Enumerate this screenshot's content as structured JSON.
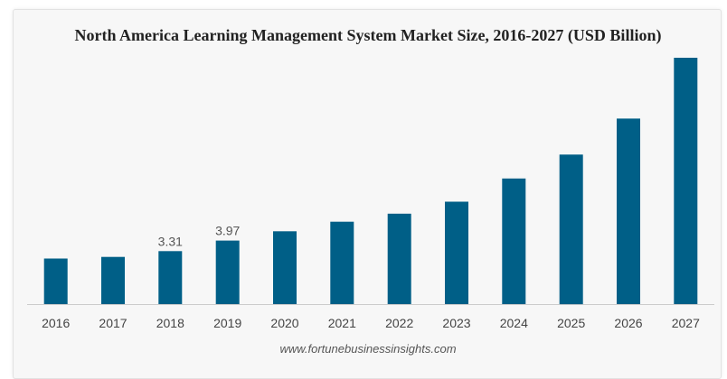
{
  "colors": {
    "bar": "#005f87",
    "background": "#f7f7f7"
  },
  "chart_data": {
    "type": "bar",
    "title": "North America Learning Management System Market Size, 2016-2027 (USD Billion)",
    "categories": [
      "2016",
      "2017",
      "2018",
      "2019",
      "2020",
      "2021",
      "2022",
      "2023",
      "2024",
      "2025",
      "2026",
      "2027"
    ],
    "values": [
      2.85,
      2.95,
      3.31,
      3.97,
      4.55,
      5.15,
      5.65,
      6.4,
      7.85,
      9.35,
      11.6,
      15.4
    ],
    "data_labels": [
      "",
      "",
      "3.31",
      "3.97",
      "",
      "",
      "",
      "",
      "",
      "",
      "",
      ""
    ],
    "ylim": [
      0,
      15.4
    ],
    "grid": false,
    "legend": "none"
  },
  "footer": {
    "source": "www.fortunebusinessinsights.com"
  }
}
